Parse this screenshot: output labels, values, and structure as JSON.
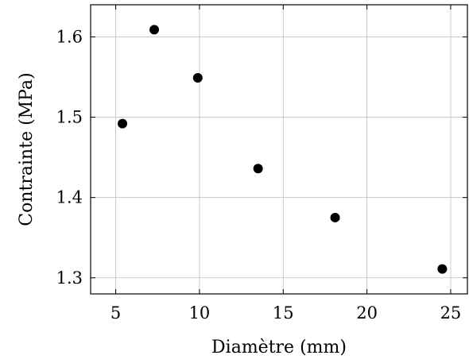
{
  "chart_data": {
    "type": "scatter",
    "title": "",
    "xlabel": "Diamètre (mm)",
    "ylabel": "Contrainte (MPa)",
    "xlim": [
      3.5,
      26.0
    ],
    "ylim": [
      1.28,
      1.64
    ],
    "xticks": [
      "5",
      "10",
      "15",
      "20",
      "25"
    ],
    "xtick_values": [
      5,
      10,
      15,
      20,
      25
    ],
    "yticks": [
      "1.3",
      "1.4",
      "1.5",
      "1.6"
    ],
    "ytick_values": [
      1.3,
      1.4,
      1.5,
      1.6
    ],
    "grid": true,
    "legend": "none",
    "colors": {
      "marker": "#000000",
      "grid": "#c0c0c0",
      "axis": "#000000"
    },
    "x": [
      5.4,
      7.3,
      9.9,
      13.5,
      18.1,
      24.5
    ],
    "y": [
      1.492,
      1.609,
      1.549,
      1.436,
      1.375,
      1.311
    ]
  }
}
